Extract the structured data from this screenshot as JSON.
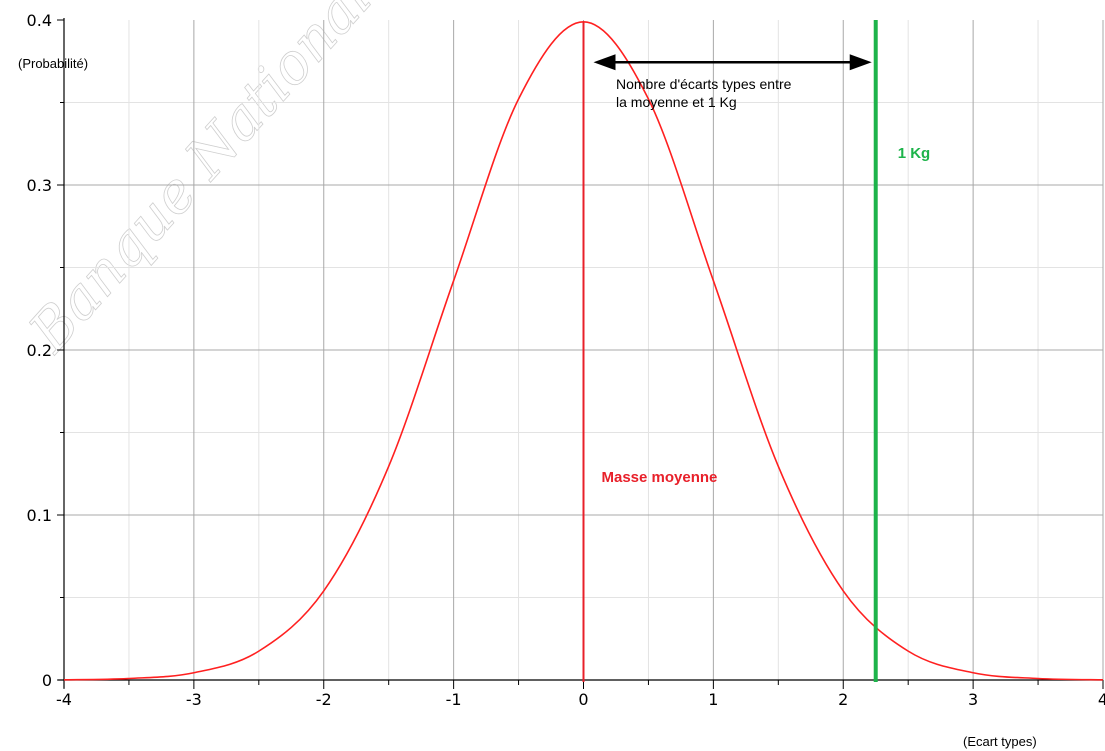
{
  "watermark": "Banque Nationale des Sujets de Bac",
  "chart_data": {
    "type": "line",
    "title": "",
    "xlabel": "(Ecart types)",
    "ylabel": "(Probabilité)",
    "xlim": [
      -4,
      4
    ],
    "ylim": [
      0,
      0.4
    ],
    "x_ticks": [
      "-4",
      "-3",
      "-2",
      "-1",
      "0",
      "1",
      "2",
      "3",
      "4"
    ],
    "y_ticks": [
      "0",
      "0.1",
      "0.2",
      "0.3",
      "0.4"
    ],
    "grid": true,
    "series": [
      {
        "color": "#ff2020",
        "x": [
          -4,
          -3.5,
          -3,
          -2.5,
          -2,
          -1.5,
          -1,
          -0.5,
          0,
          0.5,
          1,
          1.5,
          2,
          2.5,
          3,
          3.5,
          4
        ],
        "y": [
          0.0001,
          0.0009,
          0.0044,
          0.0175,
          0.054,
          0.1295,
          0.242,
          0.3521,
          0.3989,
          0.3521,
          0.242,
          0.1295,
          0.054,
          0.0175,
          0.0044,
          0.0009,
          0.0001
        ]
      }
    ],
    "vertical_lines": [
      {
        "x": 0,
        "label": "Masse moyenne",
        "color": "#e8202a"
      },
      {
        "x": 2.25,
        "label": "1 Kg",
        "color": "#1db34a"
      }
    ],
    "annotations": [
      {
        "type": "double-arrow",
        "from_x": 0,
        "to_x": 2.25,
        "y": 0.375,
        "text_lines": [
          "Nombre d'écarts types entre",
          "la moyenne et 1 Kg"
        ]
      }
    ]
  }
}
